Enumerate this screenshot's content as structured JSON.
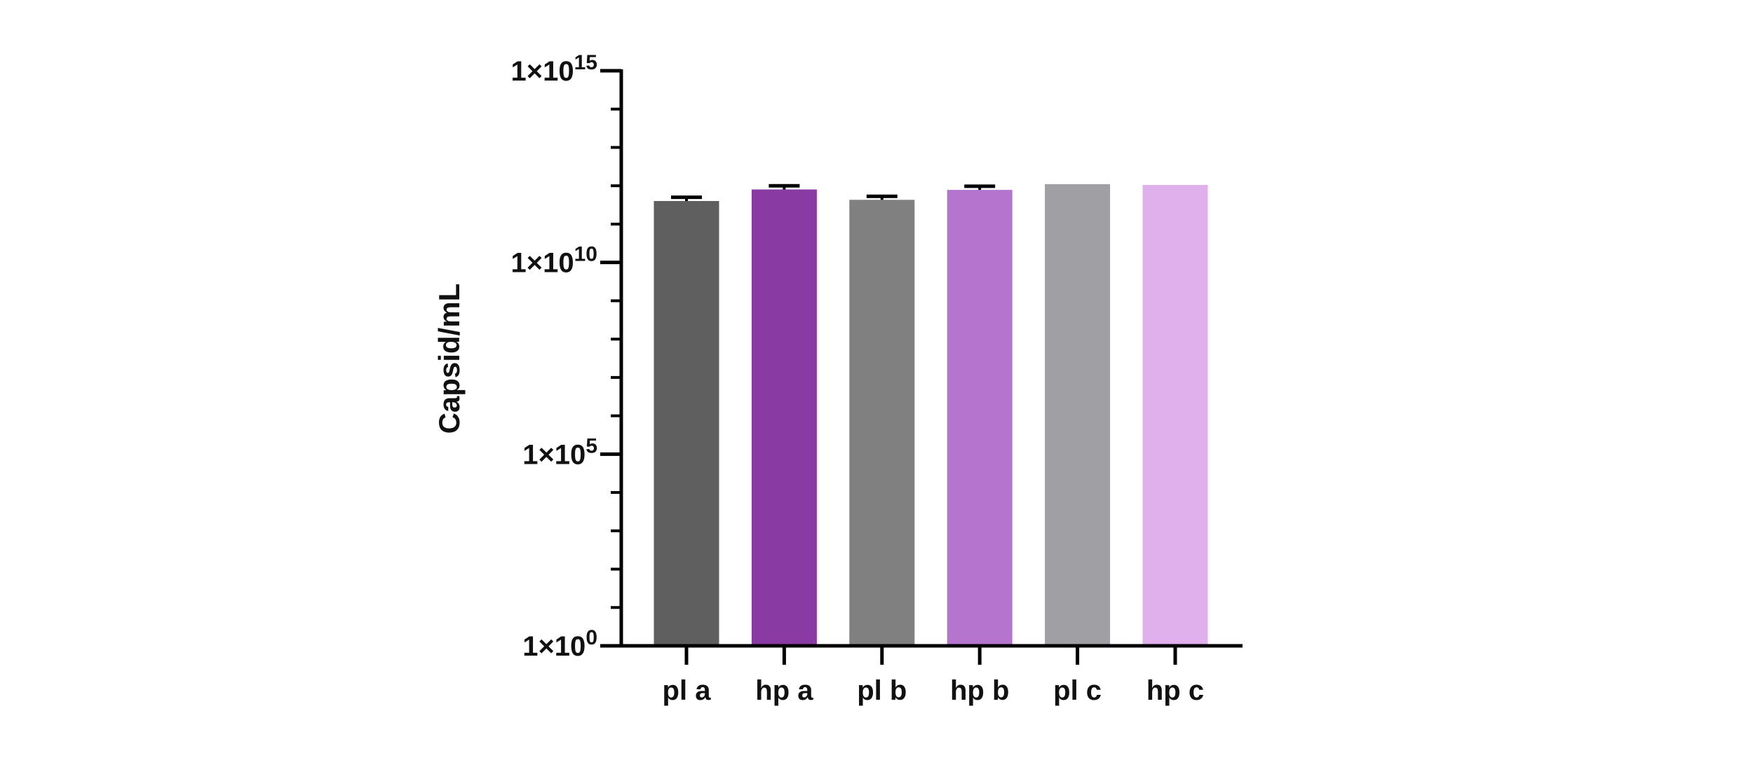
{
  "chart_data": {
    "type": "bar",
    "title": "",
    "xlabel": "",
    "ylabel": "Capsid/mL",
    "yscale": "log",
    "ylim": [
      1,
      1000000000000000.0
    ],
    "grid": false,
    "legend": "none",
    "categories": [
      "pl a",
      "hp a",
      "pl b",
      "hp b",
      "pl c",
      "hp c"
    ],
    "values": [
      400000000000.0,
      800000000000.0,
      430000000000.0,
      780000000000.0,
      1100000000000.0,
      1050000000000.0
    ],
    "error_upper": [
      500000000000.0,
      1000000000000.0,
      530000000000.0,
      970000000000.0,
      null,
      null
    ],
    "colors": [
      "#5f5f5f",
      "#8a3aa3",
      "#808080",
      "#b575cf",
      "#a09fa4",
      "#e0b0ec"
    ],
    "yticks": [
      {
        "value": 1,
        "mantissa": "1×10",
        "exponent": "0"
      },
      {
        "value": 100000.0,
        "mantissa": "1×10",
        "exponent": "5"
      },
      {
        "value": 10000000000.0,
        "mantissa": "1×10",
        "exponent": "10"
      },
      {
        "value": 1000000000000000.0,
        "mantissa": "1×10",
        "exponent": "15"
      }
    ]
  }
}
